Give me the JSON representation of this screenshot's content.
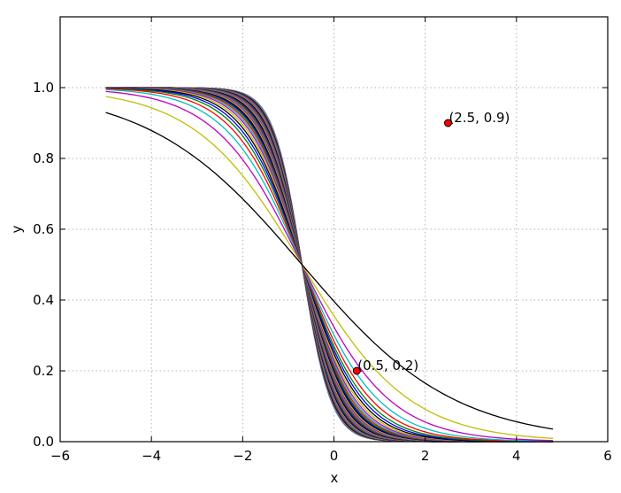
{
  "chart_data": {
    "type": "line",
    "title": "",
    "xlabel": "x",
    "ylabel": "y",
    "xlim": [
      -6,
      6
    ],
    "ylim": [
      0,
      1.2
    ],
    "xticks": [
      -6,
      -4,
      -2,
      0,
      2,
      4,
      6
    ],
    "xtick_labels": [
      "−6",
      "−4",
      "−2",
      "0",
      "2",
      "4",
      "6"
    ],
    "yticks": [
      0.0,
      0.2,
      0.4,
      0.6,
      0.8,
      1.0
    ],
    "ytick_labels": [
      "0.0",
      "0.2",
      "0.4",
      "0.6",
      "0.8",
      "1.0"
    ],
    "grid": true,
    "x_range": [
      -5,
      4.8
    ],
    "curve_family": {
      "form": "1 / (1 + exp(k * (x - x0)))",
      "x0": -0.7,
      "k_values": [
        0.6,
        0.85,
        1.05,
        1.2,
        1.32,
        1.42,
        1.5,
        1.58,
        1.65,
        1.72,
        1.78,
        1.84,
        1.9,
        1.95,
        2.0,
        2.05,
        2.1,
        2.15,
        2.2,
        2.25,
        2.3,
        2.35,
        2.4,
        2.45,
        2.5,
        2.55,
        2.6,
        2.65,
        2.7,
        2.75,
        2.8,
        2.85,
        2.9,
        2.95,
        3.0,
        3.05,
        3.1,
        3.15,
        3.2
      ],
      "colors": [
        "#000000",
        "#bfbf00",
        "#bf00bf",
        "#00bfbf",
        "#ff0000",
        "#008000",
        "#0000ff",
        "#000000",
        "#bfbf00",
        "#bf00bf",
        "#00bfbf",
        "#ff0000",
        "#008000",
        "#0000ff",
        "#000000",
        "#bfbf00",
        "#bf00bf",
        "#00bfbf",
        "#ff0000",
        "#008000",
        "#0000ff",
        "#000000",
        "#bfbf00",
        "#bf00bf",
        "#00bfbf",
        "#ff0000",
        "#008000",
        "#0000ff",
        "#000000",
        "#bfbf00",
        "#bf00bf",
        "#00bfbf",
        "#ff0000",
        "#008000",
        "#0000ff",
        "#000000",
        "#bfbf00",
        "#bf00bf",
        "#00bfbf"
      ]
    },
    "points": [
      {
        "x": 2.5,
        "y": 0.9,
        "label": "(2.5, 0.9)"
      },
      {
        "x": 0.5,
        "y": 0.2,
        "label": "(0.5, 0.2)"
      }
    ],
    "point_color": "#ff0000"
  }
}
